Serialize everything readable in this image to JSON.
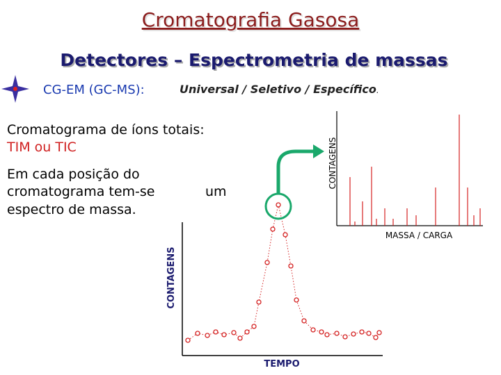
{
  "header": {
    "title": "Cromatografia Gasosa",
    "subtitle": "Detectores – Espectrometria de massas"
  },
  "bullet": {
    "label": "CG-EM (GC-MS):",
    "text": "Universal / Seletivo / Específico",
    "end": "."
  },
  "body": {
    "heading": "Cromatograma de íons totais:",
    "highlight": "TIM ou TIC",
    "lines": [
      "Em cada posição do",
      "cromatograma tem-se",
      "um",
      "espectro de massa."
    ]
  },
  "spectrum": {
    "y_label": "CONTAGENS",
    "x_label": "MASSA / CARGA"
  },
  "chromatogram": {
    "y_label": "CONTAGENS",
    "x_label": "TEMPO"
  }
}
